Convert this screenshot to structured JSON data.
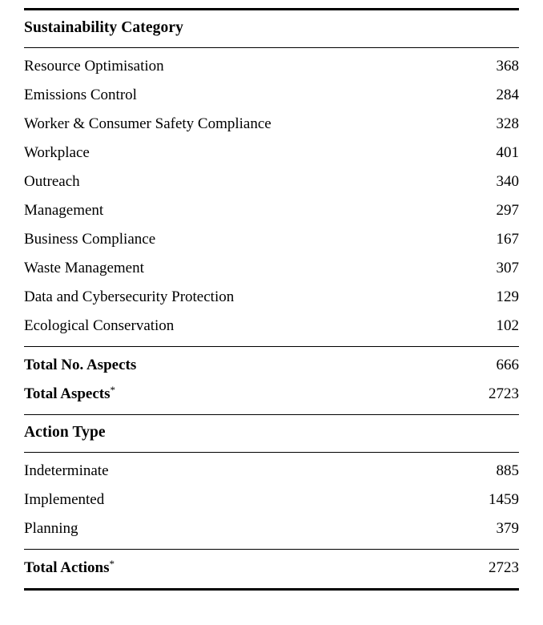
{
  "category_section": {
    "header": "Sustainability Category",
    "rows": [
      {
        "label": "Resource Optimisation",
        "value": "368"
      },
      {
        "label": "Emissions Control",
        "value": "284"
      },
      {
        "label": "Worker & Consumer Safety Compliance",
        "value": "328"
      },
      {
        "label": "Workplace",
        "value": "401"
      },
      {
        "label": "Outreach",
        "value": "340"
      },
      {
        "label": "Management",
        "value": "297"
      },
      {
        "label": "Business Compliance",
        "value": "167"
      },
      {
        "label": "Waste Management",
        "value": "307"
      },
      {
        "label": "Data and Cybersecurity Protection",
        "value": "129"
      },
      {
        "label": "Ecological Conservation",
        "value": "102"
      }
    ]
  },
  "aspects_totals": {
    "rows": [
      {
        "label": "Total No. Aspects",
        "value": "666"
      },
      {
        "label": "Total Aspects",
        "sup": "*",
        "value": "2723"
      }
    ]
  },
  "action_section": {
    "header": "Action Type",
    "rows": [
      {
        "label": "Indeterminate",
        "value": "885"
      },
      {
        "label": "Implemented",
        "value": "1459"
      },
      {
        "label": "Planning",
        "value": "379"
      }
    ]
  },
  "actions_total": {
    "rows": [
      {
        "label": "Total Actions",
        "sup": "*",
        "value": "2723"
      }
    ]
  }
}
